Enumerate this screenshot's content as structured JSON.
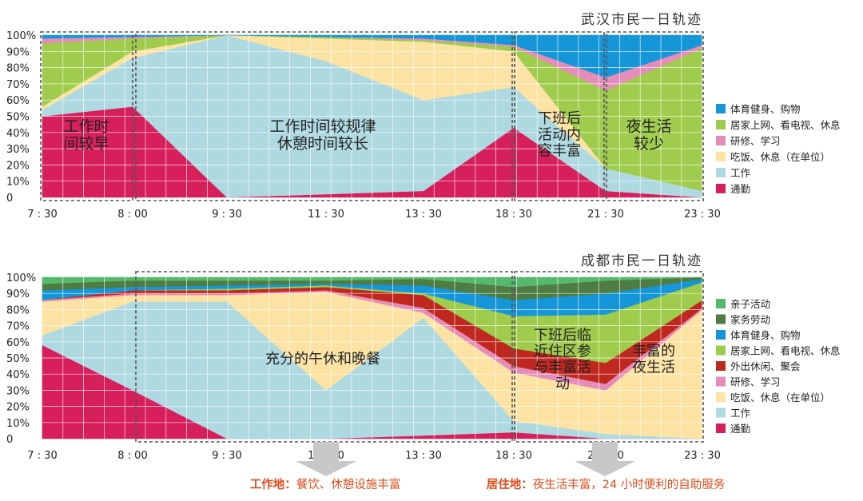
{
  "colors": {
    "commute": "#d61f5b",
    "work": "#aed9e0",
    "meal_rest": "#fde3a3",
    "study": "#e58db8",
    "leisure_out": "#c0281f",
    "home": "#9fcc4c",
    "sports": "#1596d8",
    "housework": "#4e7c42",
    "parenting": "#55b86f",
    "gridline": "#ffffff",
    "box": "#555555",
    "arrow": "#c8c8c8",
    "bottom_label": "#e04b1b"
  },
  "x_ticks": [
    "7 : 30",
    "8 : 00",
    "9 : 30",
    "11 : 30",
    "13 : 30",
    "18 : 30",
    "21 : 30",
    "23 : 30"
  ],
  "y_ticks": [
    "0",
    "10%",
    "20%",
    "30%",
    "40%",
    "50%",
    "60%",
    "70%",
    "80%",
    "90%",
    "100%"
  ],
  "wuhan_y_ticks": [
    "0",
    "10%",
    "20%",
    "30%",
    "40%",
    "50%",
    "60%",
    "70%",
    "80%",
    "90%",
    "100%"
  ],
  "chart_data": [
    {
      "type": "area",
      "title": "武汉市民一日轨迹",
      "x": [
        "7 : 30",
        "8 : 00",
        "9 : 30",
        "11 : 30",
        "13 : 30",
        "18 : 30",
        "21 : 30",
        "23 : 30"
      ],
      "ylim": [
        0,
        100
      ],
      "grid": true,
      "legend_position": "right",
      "series": [
        {
          "name": "通勤",
          "color_key": "commute",
          "values": [
            50,
            56,
            0,
            2,
            4,
            43,
            4,
            0
          ]
        },
        {
          "name": "工作",
          "color_key": "work",
          "values": [
            4,
            30,
            100,
            82,
            56,
            25,
            14,
            4
          ]
        },
        {
          "name": "吃饭、休息（在单位）",
          "color_key": "meal_rest",
          "values": [
            2,
            4,
            0,
            14,
            36,
            22,
            0,
            0
          ]
        },
        {
          "name": "居家上网、看电视、休息",
          "color_key": "home",
          "values": [
            39,
            8,
            0,
            1,
            1,
            3,
            48,
            88
          ]
        },
        {
          "name": "研修、学习",
          "color_key": "study",
          "values": [
            3,
            1,
            0,
            0,
            1,
            1,
            8,
            2
          ]
        },
        {
          "name": "体育健身、购物",
          "color_key": "sports",
          "values": [
            2,
            1,
            0,
            1,
            2,
            6,
            26,
            6
          ]
        }
      ],
      "legend_order": [
        "体育健身、购物",
        "居家上网、看电视、休息",
        "研修、学习",
        "吃饭、休息（在单位）",
        "工作",
        "通勤"
      ],
      "annotations": [
        "工作时\n间较早",
        "工作时间较规律\n休憩时间较长",
        "下班后\n活动内\n容丰富",
        "夜生活\n较少"
      ]
    },
    {
      "type": "area",
      "title": "成都市民一日轨迹",
      "x": [
        "7 : 30",
        "8 : 00",
        "9 : 30",
        "11 : 30",
        "13 : 30",
        "18 : 30",
        "21 : 30",
        "23 : 30"
      ],
      "ylim": [
        0,
        100
      ],
      "grid": true,
      "legend_position": "right",
      "series": [
        {
          "name": "通勤",
          "color_key": "commute",
          "values": [
            58,
            30,
            0,
            0,
            2,
            4,
            0,
            0
          ]
        },
        {
          "name": "工作",
          "color_key": "work",
          "values": [
            6,
            55,
            85,
            30,
            73,
            7,
            3,
            0
          ]
        },
        {
          "name": "吃饭、休息（在单位）",
          "color_key": "meal_rest",
          "values": [
            21,
            4,
            4,
            61,
            3,
            30,
            27,
            80
          ]
        },
        {
          "name": "研修、学习",
          "color_key": "study",
          "values": [
            1,
            1,
            1,
            1,
            3,
            4,
            4,
            1
          ]
        },
        {
          "name": "外出休闲、聚会",
          "color_key": "leisure_out",
          "values": [
            0,
            2,
            2,
            2,
            8,
            11,
            13,
            5
          ]
        },
        {
          "name": "居家上网、看电视、休息",
          "color_key": "home",
          "values": [
            0,
            0,
            1,
            1,
            1,
            20,
            30,
            11
          ]
        },
        {
          "name": "体育健身、购物",
          "color_key": "sports",
          "values": [
            6,
            2,
            2,
            1,
            5,
            10,
            13,
            2
          ]
        },
        {
          "name": "家务劳动",
          "color_key": "housework",
          "values": [
            4,
            4,
            3,
            2,
            4,
            8,
            8,
            1
          ]
        },
        {
          "name": "亲子活动",
          "color_key": "parenting",
          "values": [
            4,
            2,
            2,
            2,
            1,
            6,
            2,
            0
          ]
        }
      ],
      "legend_order": [
        "亲子活动",
        "家务劳动",
        "体育健身、购物",
        "居家上网、看电视、休息",
        "外出休闲、聚会",
        "研修、学习",
        "吃饭、休息（在单位）",
        "工作",
        "通勤"
      ],
      "annotations": [
        "充分的午休和晚餐",
        "下班后临\n近住区参\n与丰富活\n动",
        "丰富的\n夜生活"
      ]
    }
  ],
  "bottom_notes": [
    {
      "strong": "工作地：",
      "text": "餐饮、休憩设施丰富"
    },
    {
      "strong": "居住地：",
      "text": "夜生活丰富，24 小时便利的自助服务"
    }
  ]
}
